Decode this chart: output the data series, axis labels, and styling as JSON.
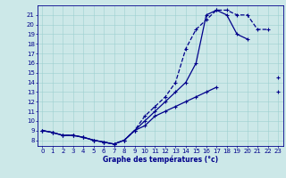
{
  "title": "Graphe des températures (°c)",
  "bg_color": "#cce8e8",
  "line_color": "#00008b",
  "grid_color": "#9dcfcf",
  "yticks": [
    8,
    9,
    10,
    11,
    12,
    13,
    14,
    15,
    16,
    17,
    18,
    19,
    20,
    21
  ],
  "xticks": [
    0,
    1,
    2,
    3,
    4,
    5,
    6,
    7,
    8,
    9,
    10,
    11,
    12,
    13,
    14,
    15,
    16,
    17,
    18,
    19,
    20,
    21,
    22,
    23
  ],
  "xlim": [
    -0.5,
    23.5
  ],
  "ylim": [
    7.4,
    22.0
  ],
  "curve_dashed": {
    "x": [
      0,
      1,
      2,
      3,
      4,
      5,
      6,
      7,
      8,
      9,
      10,
      11,
      12,
      13,
      14,
      15,
      16,
      17,
      18,
      19,
      20,
      21,
      22,
      23
    ],
    "y": [
      9,
      8.8,
      8.5,
      8.5,
      8.3,
      8.0,
      7.8,
      7.6,
      8.0,
      9.0,
      10.5,
      11.5,
      12.5,
      14.0,
      17.5,
      19.5,
      20.5,
      21.5,
      21.5,
      21.0,
      21.0,
      19.5,
      19.5,
      null
    ]
  },
  "curve_solid1": {
    "x": [
      0,
      1,
      2,
      3,
      4,
      5,
      6,
      7,
      8,
      9,
      10,
      11,
      12,
      13,
      14,
      15,
      16,
      17,
      18,
      19,
      20,
      21,
      22,
      23
    ],
    "y": [
      9,
      8.8,
      8.5,
      8.5,
      8.3,
      8.0,
      7.8,
      7.6,
      8.0,
      9.0,
      10.0,
      11.0,
      12.0,
      13.0,
      14.0,
      16.0,
      21.0,
      21.5,
      21.0,
      19.0,
      18.5,
      null,
      null,
      14.5
    ]
  },
  "curve_solid2": {
    "x": [
      0,
      1,
      2,
      3,
      4,
      5,
      6,
      7,
      8,
      9,
      10,
      11,
      12,
      13,
      14,
      15,
      16,
      17,
      18,
      19,
      20,
      21,
      22,
      23
    ],
    "y": [
      9,
      8.8,
      8.5,
      8.5,
      8.3,
      8.0,
      7.8,
      7.6,
      8.0,
      9.0,
      9.5,
      10.5,
      11.0,
      11.5,
      12.0,
      12.5,
      13.0,
      13.5,
      null,
      null,
      null,
      null,
      null,
      13.0
    ]
  }
}
